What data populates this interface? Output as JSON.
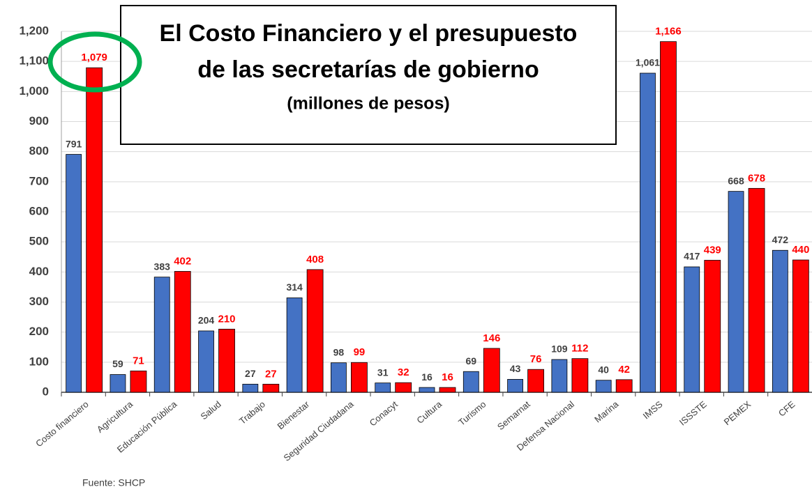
{
  "chart_data": {
    "type": "bar",
    "title": [
      "El Costo Financiero y el presupuesto",
      "de las secretarías de gobierno"
    ],
    "subtitle": "(millones de pesos)",
    "source": "Fuente: SHCP",
    "categories": [
      "Costo financiero",
      "Agricultura",
      "Educación Pública",
      "Salud",
      "Trabajo",
      "Bienestar",
      "Seguridad Ciudadana",
      "Conacyt",
      "Cultura",
      "Turismo",
      "Semarnat",
      "Defensa Nacional",
      "Marina",
      "IMSS",
      "ISSSTE",
      "PEMEX",
      "CFE"
    ],
    "series": [
      {
        "color": "#4472c4",
        "values": [
          791,
          59,
          383,
          204,
          27,
          314,
          98,
          31,
          16,
          69,
          43,
          109,
          40,
          1061,
          417,
          668,
          472
        ],
        "value_labels": [
          "791",
          "59",
          "383",
          "204",
          "27",
          "314",
          "98",
          "31",
          "16",
          "69",
          "43",
          "109",
          "40",
          "1,061",
          "417",
          "668",
          "472"
        ]
      },
      {
        "color": "#ff0000",
        "values": [
          1079,
          71,
          402,
          210,
          27,
          408,
          99,
          32,
          16,
          146,
          76,
          112,
          42,
          1166,
          439,
          678,
          440
        ],
        "value_labels": [
          "1,079",
          "71",
          "402",
          "210",
          "27",
          "408",
          "99",
          "32",
          "16",
          "146",
          "76",
          "112",
          "42",
          "1,166",
          "439",
          "678",
          "440"
        ]
      }
    ],
    "ylim": [
      0,
      1200
    ],
    "yticks": [
      0,
      100,
      200,
      300,
      400,
      500,
      600,
      700,
      800,
      900,
      {
        "value": 1000,
        "label": "1,000"
      },
      {
        "value": 1100,
        "label": "1,100"
      },
      {
        "value": 1200,
        "label": "1,200"
      }
    ],
    "grid": true
  }
}
